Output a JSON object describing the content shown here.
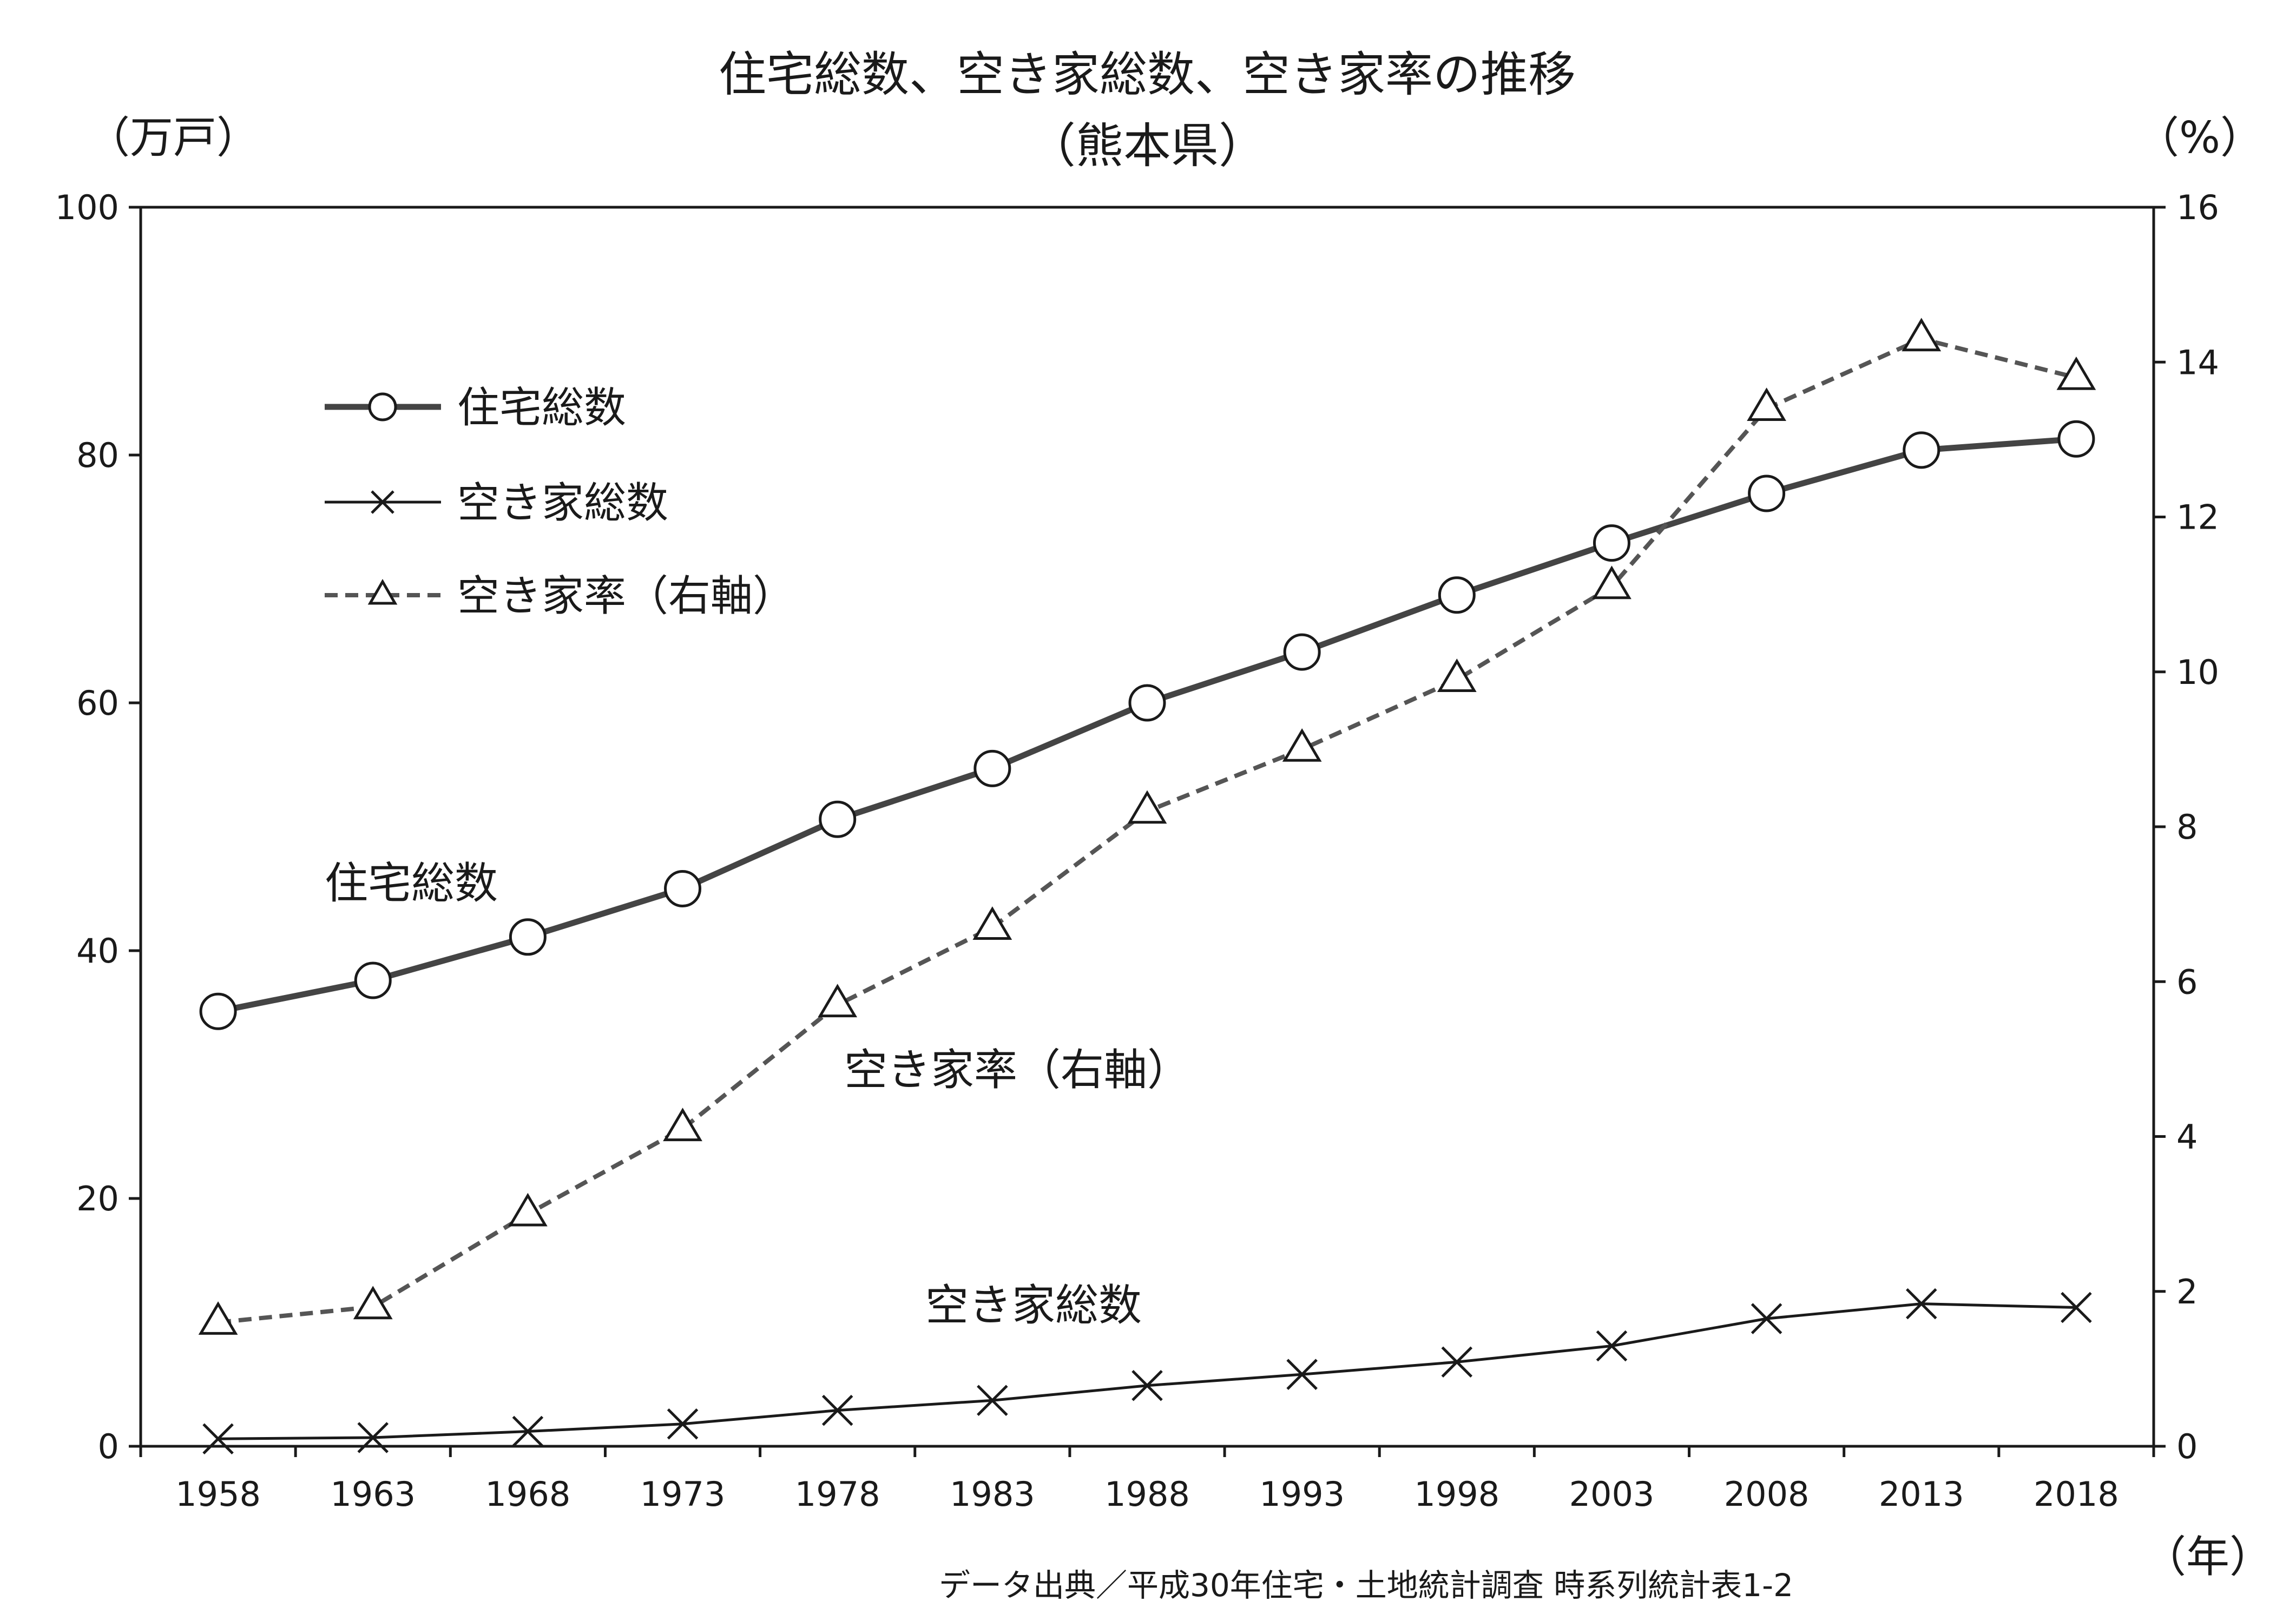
{
  "chart_data": {
    "type": "line",
    "title_line1": "住宅総数、空き家総数、空き家率の推移",
    "title_line2": "（熊本県）",
    "y_left_unit": "（万戸）",
    "y_right_unit": "（%）",
    "x_unit": "（年）",
    "source": "データ出典／平成30年住宅・土地統計調査 時系列統計表1-2",
    "categories": [
      "1958",
      "1963",
      "1968",
      "1973",
      "1978",
      "1983",
      "1988",
      "1993",
      "1998",
      "2003",
      "2008",
      "2013",
      "2018"
    ],
    "y_left": {
      "min": 0,
      "max": 100,
      "ticks": [
        "0",
        "20",
        "40",
        "60",
        "80",
        "100"
      ]
    },
    "y_right": {
      "min": 0,
      "max": 16,
      "ticks": [
        "0",
        "2",
        "4",
        "6",
        "8",
        "10",
        "12",
        "14",
        "16"
      ]
    },
    "series": [
      {
        "name": "住宅総数",
        "axis": "left",
        "marker": "circle",
        "style": "solid-thick",
        "values": [
          35.1,
          37.6,
          41.1,
          45.0,
          50.6,
          54.7,
          60.0,
          64.1,
          68.7,
          72.9,
          76.9,
          80.4,
          81.3
        ]
      },
      {
        "name": "空き家総数",
        "axis": "left",
        "marker": "x",
        "style": "solid-thin",
        "values": [
          0.6,
          0.7,
          1.2,
          1.8,
          2.9,
          3.7,
          4.9,
          5.8,
          6.8,
          8.1,
          10.3,
          11.5,
          11.2
        ]
      },
      {
        "name": "空き家率（右軸）",
        "axis": "right",
        "marker": "triangle",
        "style": "dashed",
        "values": [
          1.6,
          1.8,
          3.0,
          4.1,
          5.7,
          6.7,
          8.2,
          9.0,
          9.9,
          11.1,
          13.4,
          14.3,
          13.8
        ]
      }
    ],
    "annotations": {
      "housing": "住宅総数",
      "rate": "空き家率（右軸）",
      "vacant": "空き家総数"
    },
    "legend_placement": "top-left",
    "grid": false
  }
}
